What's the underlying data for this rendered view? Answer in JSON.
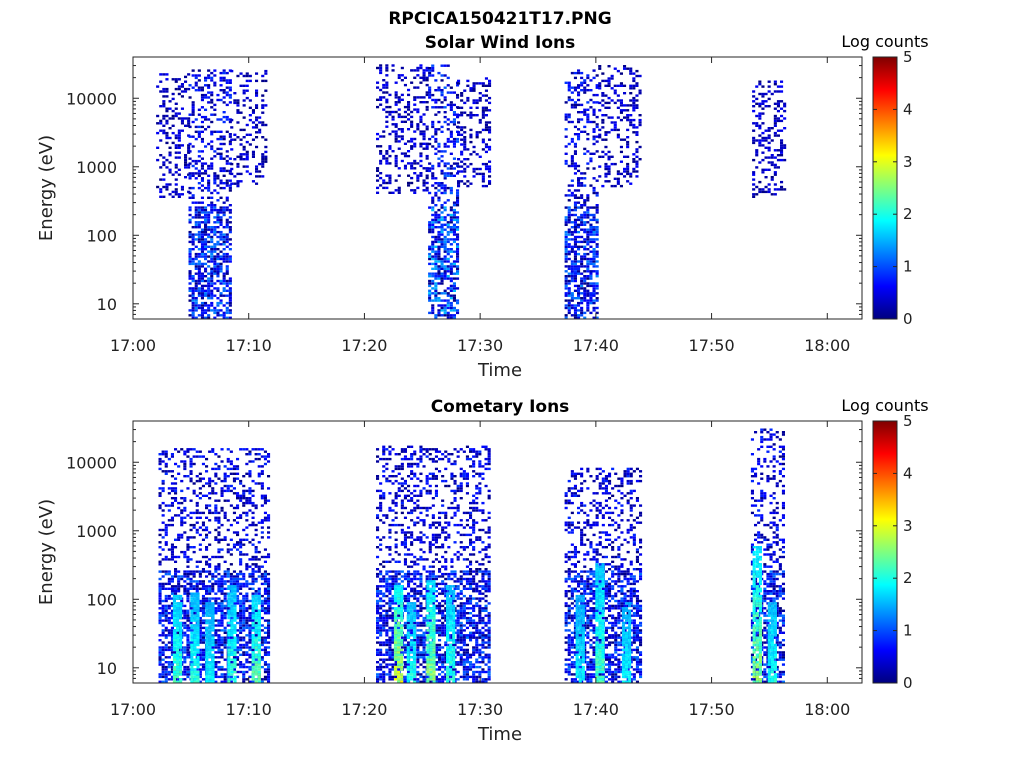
{
  "figure_title": "RPCICA150421T17.PNG",
  "colormap": [
    "#00007f",
    "#0000ff",
    "#007fff",
    "#00ffff",
    "#7fff7f",
    "#ffff00",
    "#ff7f00",
    "#ff0000",
    "#7f0000"
  ],
  "chart_data": [
    {
      "type": "heatmap",
      "title": "Solar Wind Ions",
      "xlabel": "Time",
      "ylabel": "Energy (eV)",
      "x_ticks": [
        "17:00",
        "17:10",
        "17:20",
        "17:30",
        "17:40",
        "17:50",
        "18:00"
      ],
      "x_tick_minutes": [
        0,
        10,
        20,
        30,
        40,
        50,
        60
      ],
      "xlim_minutes": [
        0,
        63
      ],
      "y_scale": "log",
      "ylim": [
        6,
        40000
      ],
      "y_ticks": [
        "10",
        "100",
        "1000",
        "10000"
      ],
      "y_tick_values": [
        10,
        100,
        1000,
        10000
      ],
      "colorbar": {
        "label": "Log counts",
        "range": [
          0,
          5
        ],
        "ticks": [
          "0",
          "1",
          "2",
          "3",
          "4",
          "5"
        ]
      },
      "bursts": [
        {
          "start_min": 2.0,
          "end_min": 4.8,
          "emin": 350,
          "emax": 25000,
          "max_log": 0.9
        },
        {
          "start_min": 4.8,
          "end_min": 8.4,
          "emin": 6,
          "emax": 25000,
          "max_log": 1.3
        },
        {
          "start_min": 8.4,
          "end_min": 11.6,
          "emin": 500,
          "emax": 25000,
          "max_log": 0.9
        },
        {
          "start_min": 21.0,
          "end_min": 25.5,
          "emin": 400,
          "emax": 30000,
          "max_log": 0.9
        },
        {
          "start_min": 25.5,
          "end_min": 28.0,
          "emin": 6,
          "emax": 30000,
          "max_log": 1.6
        },
        {
          "start_min": 28.0,
          "end_min": 30.8,
          "emin": 500,
          "emax": 20000,
          "max_log": 0.9
        },
        {
          "start_min": 37.3,
          "end_min": 40.2,
          "emin": 6,
          "emax": 25000,
          "max_log": 1.3
        },
        {
          "start_min": 40.2,
          "end_min": 43.8,
          "emin": 500,
          "emax": 30000,
          "max_log": 0.9
        },
        {
          "start_min": 53.5,
          "end_min": 56.3,
          "emin": 350,
          "emax": 18000,
          "max_log": 0.9
        }
      ]
    },
    {
      "type": "heatmap",
      "title": "Cometary Ions",
      "xlabel": "Time",
      "ylabel": "Energy (eV)",
      "x_ticks": [
        "17:00",
        "17:10",
        "17:20",
        "17:30",
        "17:40",
        "17:50",
        "18:00"
      ],
      "x_tick_minutes": [
        0,
        10,
        20,
        30,
        40,
        50,
        60
      ],
      "xlim_minutes": [
        0,
        63
      ],
      "y_scale": "log",
      "ylim": [
        6,
        40000
      ],
      "y_ticks": [
        "10",
        "100",
        "1000",
        "10000"
      ],
      "y_tick_values": [
        10,
        100,
        1000,
        10000
      ],
      "colorbar": {
        "label": "Log counts",
        "range": [
          0,
          5
        ],
        "ticks": [
          "0",
          "1",
          "2",
          "3",
          "4",
          "5"
        ]
      },
      "bursts": [
        {
          "start_min": 2.2,
          "end_min": 11.6,
          "emin": 6,
          "emax": 15000,
          "max_log": 1.2
        },
        {
          "start_min": 21.0,
          "end_min": 30.8,
          "emin": 6,
          "emax": 17000,
          "max_log": 1.2
        },
        {
          "start_min": 37.3,
          "end_min": 43.8,
          "emin": 6,
          "emax": 8000,
          "max_log": 1.2
        },
        {
          "start_min": 53.4,
          "end_min": 56.3,
          "emin": 6,
          "emax": 30000,
          "max_log": 1.2
        }
      ],
      "spikes": [
        {
          "min": 3.8,
          "emin": 6,
          "emax": 110,
          "max_log": 2.4
        },
        {
          "min": 5.3,
          "emin": 6,
          "emax": 120,
          "max_log": 2.2
        },
        {
          "min": 6.6,
          "emin": 6,
          "emax": 90,
          "max_log": 2.0
        },
        {
          "min": 8.5,
          "emin": 6,
          "emax": 150,
          "max_log": 2.3
        },
        {
          "min": 10.6,
          "emin": 6,
          "emax": 110,
          "max_log": 2.6
        },
        {
          "min": 22.9,
          "emin": 6,
          "emax": 150,
          "max_log": 3.2
        },
        {
          "min": 24.0,
          "emin": 6,
          "emax": 90,
          "max_log": 2.2
        },
        {
          "min": 25.7,
          "emin": 6,
          "emax": 180,
          "max_log": 2.8
        },
        {
          "min": 27.4,
          "emin": 6,
          "emax": 150,
          "max_log": 2.3
        },
        {
          "min": 38.6,
          "emin": 6,
          "emax": 110,
          "max_log": 2.0
        },
        {
          "min": 40.3,
          "emin": 6,
          "emax": 330,
          "max_log": 2.4
        },
        {
          "min": 42.6,
          "emin": 6,
          "emax": 90,
          "max_log": 2.0
        },
        {
          "min": 53.9,
          "emin": 6,
          "emax": 600,
          "max_log": 2.8
        },
        {
          "min": 55.2,
          "emin": 6,
          "emax": 90,
          "max_log": 2.2
        }
      ]
    }
  ]
}
